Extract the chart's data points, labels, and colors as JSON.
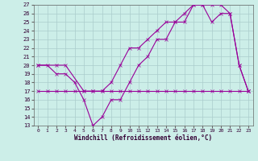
{
  "background_color": "#cceee8",
  "grid_color": "#aacccc",
  "line_color": "#990099",
  "xlim": [
    -0.5,
    23.5
  ],
  "ylim": [
    13,
    27
  ],
  "xticks": [
    0,
    1,
    2,
    3,
    4,
    5,
    6,
    7,
    8,
    9,
    10,
    11,
    12,
    13,
    14,
    15,
    16,
    17,
    18,
    19,
    20,
    21,
    22,
    23
  ],
  "yticks": [
    13,
    14,
    15,
    16,
    17,
    18,
    19,
    20,
    21,
    22,
    23,
    24,
    25,
    26,
    27
  ],
  "xlabel": "Windchill (Refroidissement éolien,°C)",
  "curve_flat_x": [
    0,
    1,
    2,
    3,
    4,
    5,
    6,
    7,
    8,
    9,
    10,
    11,
    12,
    13,
    14,
    15,
    16,
    17,
    18,
    19,
    20,
    21,
    22,
    23
  ],
  "curve_flat_y": [
    17,
    17,
    17,
    17,
    17,
    17,
    17,
    17,
    17,
    17,
    17,
    17,
    17,
    17,
    17,
    17,
    17,
    17,
    17,
    17,
    17,
    17,
    17,
    17
  ],
  "curve_dip_x": [
    0,
    1,
    2,
    3,
    4,
    5,
    6,
    7,
    8,
    9,
    10,
    11,
    12,
    13,
    14,
    15,
    16,
    17,
    18,
    19,
    20,
    21,
    22,
    23
  ],
  "curve_dip_y": [
    20,
    20,
    19,
    19,
    18,
    16,
    13,
    14,
    16,
    16,
    18,
    20,
    21,
    23,
    23,
    25,
    25,
    27,
    27,
    25,
    26,
    26,
    20,
    17
  ],
  "curve_rise_x": [
    0,
    2,
    3,
    5,
    6,
    7,
    8,
    9,
    10,
    11,
    12,
    13,
    14,
    15,
    16,
    17,
    18,
    19,
    20,
    21,
    22,
    23
  ],
  "curve_rise_y": [
    20,
    20,
    20,
    17,
    17,
    17,
    18,
    20,
    22,
    22,
    23,
    24,
    25,
    25,
    26,
    27,
    27,
    27,
    27,
    26,
    20,
    17
  ]
}
